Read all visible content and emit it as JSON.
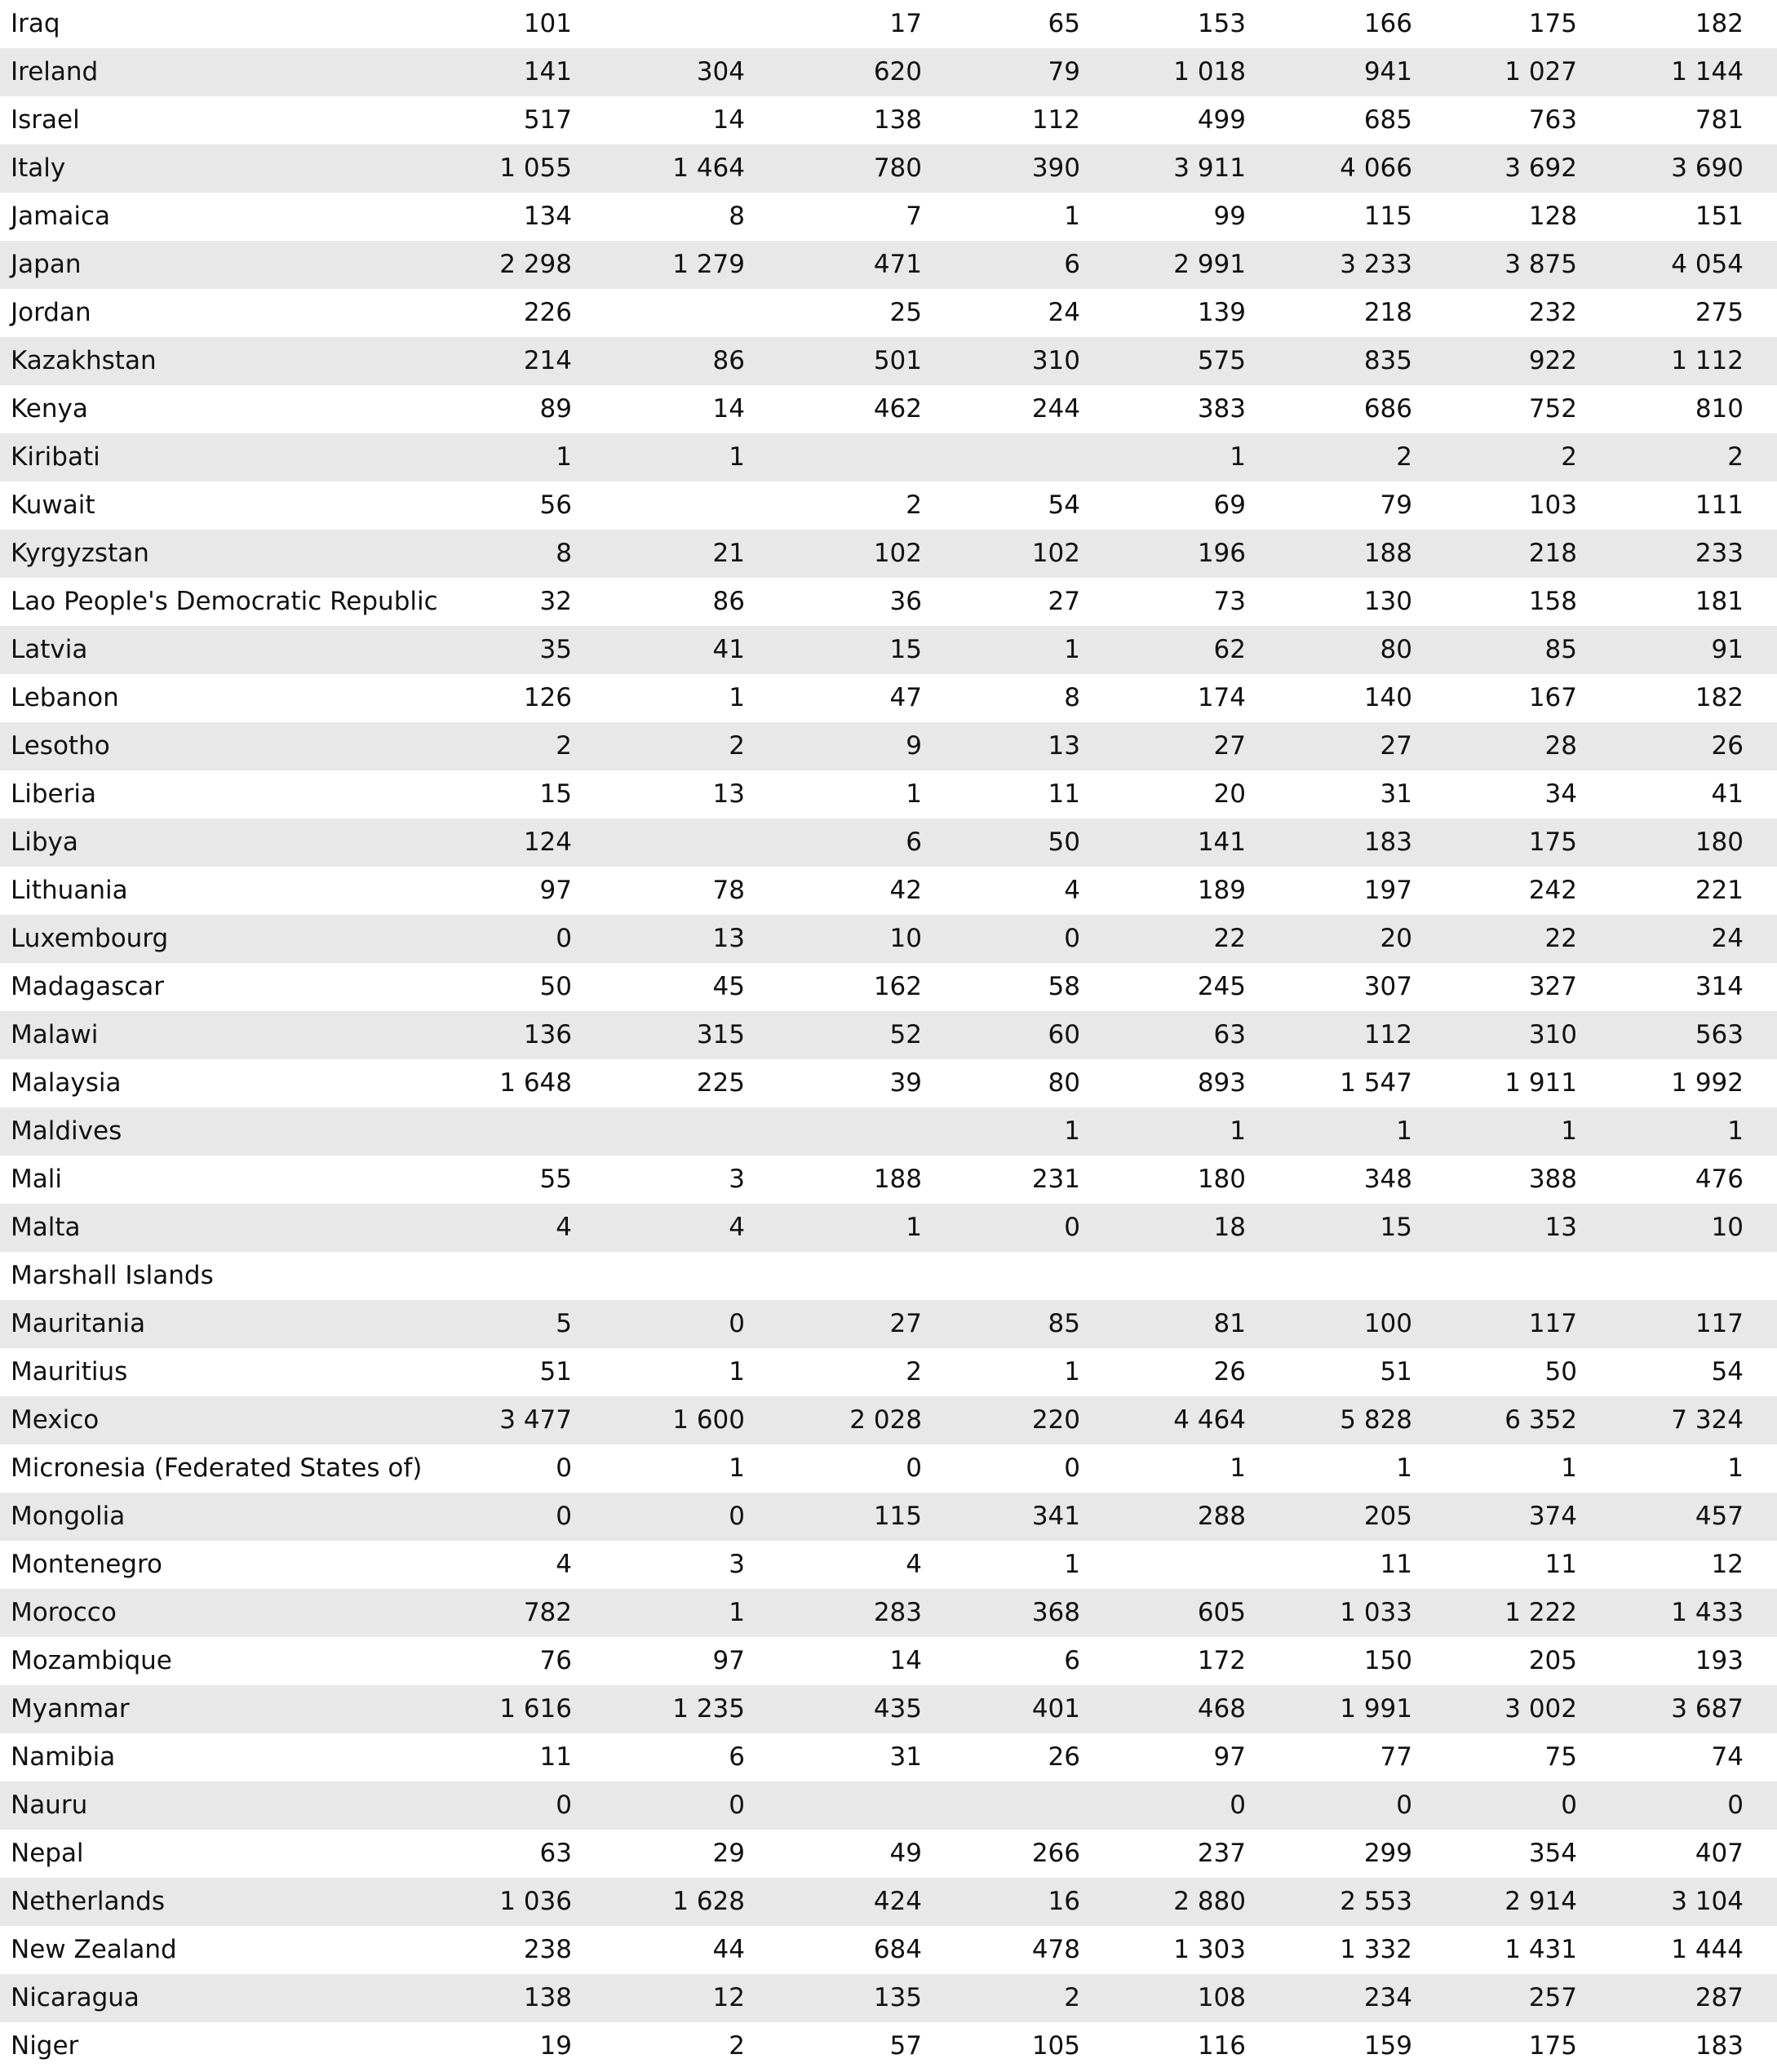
{
  "table": {
    "rows": [
      [
        "Iraq",
        "101",
        null,
        "17",
        "65",
        "153",
        "166",
        "175",
        "182"
      ],
      [
        "Ireland",
        "141",
        "304",
        "620",
        "79",
        "1 018",
        "941",
        "1 027",
        "1 144"
      ],
      [
        "Israel",
        "517",
        "14",
        "138",
        "112",
        "499",
        "685",
        "763",
        "781"
      ],
      [
        "Italy",
        "1 055",
        "1 464",
        "780",
        "390",
        "3 911",
        "4 066",
        "3 692",
        "3 690"
      ],
      [
        "Jamaica",
        "134",
        "8",
        "7",
        "1",
        "99",
        "115",
        "128",
        "151"
      ],
      [
        "Japan",
        "2 298",
        "1 279",
        "471",
        "6",
        "2 991",
        "3 233",
        "3 875",
        "4 054"
      ],
      [
        "Jordan",
        "226",
        null,
        "25",
        "24",
        "139",
        "218",
        "232",
        "275"
      ],
      [
        "Kazakhstan",
        "214",
        "86",
        "501",
        "310",
        "575",
        "835",
        "922",
        "1 112"
      ],
      [
        "Kenya",
        "89",
        "14",
        "462",
        "244",
        "383",
        "686",
        "752",
        "810"
      ],
      [
        "Kiribati",
        "1",
        "1",
        null,
        null,
        "1",
        "2",
        "2",
        "2"
      ],
      [
        "Kuwait",
        "56",
        null,
        "2",
        "54",
        "69",
        "79",
        "103",
        "111"
      ],
      [
        "Kyrgyzstan",
        "8",
        "21",
        "102",
        "102",
        "196",
        "188",
        "218",
        "233"
      ],
      [
        "Lao People's Democratic Republic",
        "32",
        "86",
        "36",
        "27",
        "73",
        "130",
        "158",
        "181"
      ],
      [
        "Latvia",
        "35",
        "41",
        "15",
        "1",
        "62",
        "80",
        "85",
        "91"
      ],
      [
        "Lebanon",
        "126",
        "1",
        "47",
        "8",
        "174",
        "140",
        "167",
        "182"
      ],
      [
        "Lesotho",
        "2",
        "2",
        "9",
        "13",
        "27",
        "27",
        "28",
        "26"
      ],
      [
        "Liberia",
        "15",
        "13",
        "1",
        "11",
        "20",
        "31",
        "34",
        "41"
      ],
      [
        "Libya",
        "124",
        null,
        "6",
        "50",
        "141",
        "183",
        "175",
        "180"
      ],
      [
        "Lithuania",
        "97",
        "78",
        "42",
        "4",
        "189",
        "197",
        "242",
        "221"
      ],
      [
        "Luxembourg",
        "0",
        "13",
        "10",
        "0",
        "22",
        "20",
        "22",
        "24"
      ],
      [
        "Madagascar",
        "50",
        "45",
        "162",
        "58",
        "245",
        "307",
        "327",
        "314"
      ],
      [
        "Malawi",
        "136",
        "315",
        "52",
        "60",
        "63",
        "112",
        "310",
        "563"
      ],
      [
        "Malaysia",
        "1 648",
        "225",
        "39",
        "80",
        "893",
        "1 547",
        "1 911",
        "1 992"
      ],
      [
        "Maldives",
        null,
        null,
        null,
        "1",
        "1",
        "1",
        "1",
        "1"
      ],
      [
        "Mali",
        "55",
        "3",
        "188",
        "231",
        "180",
        "348",
        "388",
        "476"
      ],
      [
        "Malta",
        "4",
        "4",
        "1",
        "0",
        "18",
        "15",
        "13",
        "10"
      ],
      [
        "Marshall Islands",
        null,
        null,
        null,
        null,
        null,
        null,
        null,
        null
      ],
      [
        "Mauritania",
        "5",
        "0",
        "27",
        "85",
        "81",
        "100",
        "117",
        "117"
      ],
      [
        "Mauritius",
        "51",
        "1",
        "2",
        "1",
        "26",
        "51",
        "50",
        "54"
      ],
      [
        "Mexico",
        "3 477",
        "1 600",
        "2 028",
        "220",
        "4 464",
        "5 828",
        "6 352",
        "7 324"
      ],
      [
        "Micronesia (Federated States of)",
        "0",
        "1",
        "0",
        "0",
        "1",
        "1",
        "1",
        "1"
      ],
      [
        "Mongolia",
        "0",
        "0",
        "115",
        "341",
        "288",
        "205",
        "374",
        "457"
      ],
      [
        "Montenegro",
        "4",
        "3",
        "4",
        "1",
        null,
        "11",
        "11",
        "12"
      ],
      [
        "Morocco",
        "782",
        "1",
        "283",
        "368",
        "605",
        "1 033",
        "1 222",
        "1 433"
      ],
      [
        "Mozambique",
        "76",
        "97",
        "14",
        "6",
        "172",
        "150",
        "205",
        "193"
      ],
      [
        "Myanmar",
        "1 616",
        "1 235",
        "435",
        "401",
        "468",
        "1 991",
        "3 002",
        "3 687"
      ],
      [
        "Namibia",
        "11",
        "6",
        "31",
        "26",
        "97",
        "77",
        "75",
        "74"
      ],
      [
        "Nauru",
        "0",
        "0",
        null,
        null,
        "0",
        "0",
        "0",
        "0"
      ],
      [
        "Nepal",
        "63",
        "29",
        "49",
        "266",
        "237",
        "299",
        "354",
        "407"
      ],
      [
        "Netherlands",
        "1 036",
        "1 628",
        "424",
        "16",
        "2 880",
        "2 553",
        "2 914",
        "3 104"
      ],
      [
        "New Zealand",
        "238",
        "44",
        "684",
        "478",
        "1 303",
        "1 332",
        "1 431",
        "1 444"
      ],
      [
        "Nicaragua",
        "138",
        "12",
        "135",
        "2",
        "108",
        "234",
        "257",
        "287"
      ],
      [
        "Niger",
        "19",
        "2",
        "57",
        "105",
        "116",
        "159",
        "175",
        "183"
      ]
    ]
  }
}
